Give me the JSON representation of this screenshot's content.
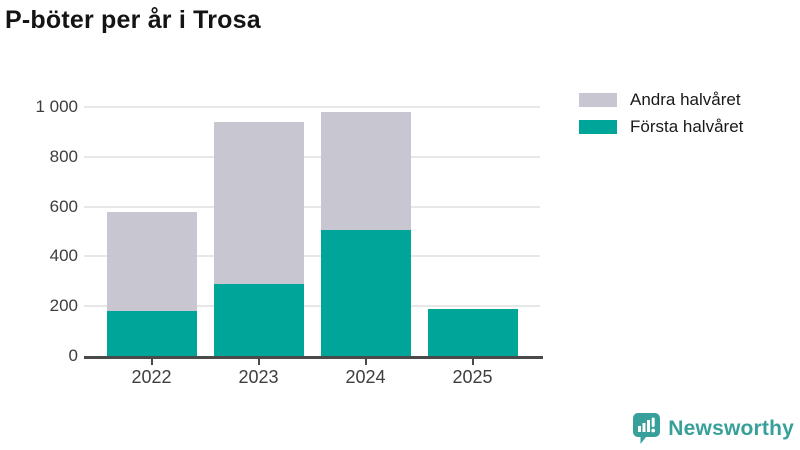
{
  "page_title": "P-böter per år i Trosa",
  "chart_data": {
    "type": "bar",
    "stacked": true,
    "title": "P-böter per år i Trosa",
    "categories": [
      "2022",
      "2023",
      "2024",
      "2025"
    ],
    "series": [
      {
        "name": "Första halvåret",
        "color": "#00A59A",
        "values": [
          180,
          290,
          505,
          190
        ]
      },
      {
        "name": "Andra halvåret",
        "color": "#C8C6D0",
        "values": [
          400,
          650,
          475,
          0
        ]
      }
    ],
    "stack_totals": [
      580,
      940,
      980,
      190
    ],
    "xlabel": "",
    "ylabel": "",
    "ylim": [
      0,
      1000
    ],
    "yticks": [
      0,
      200,
      400,
      600,
      800,
      1000
    ],
    "ytick_labels": [
      "0",
      "200",
      "400",
      "600",
      "800",
      "1 000"
    ],
    "grid": true,
    "legend_position": "top-right",
    "legend_entries": [
      {
        "label": "Andra halvåret",
        "color": "#C8C6D0"
      },
      {
        "label": "Första halvåret",
        "color": "#00A59A"
      }
    ]
  },
  "branding": {
    "name": "Newsworthy",
    "icon": "bar-chart-speech-bubble-icon",
    "color": "#38A09B"
  },
  "colors": {
    "background": "#FFFFFF",
    "axis": "#4A4A4A",
    "gridline": "#E7E7E7",
    "tick_label": "#3E3E3E",
    "title": "#141414",
    "first_half_fill": "#00A59A",
    "second_half_fill": "#C8C6D0"
  }
}
